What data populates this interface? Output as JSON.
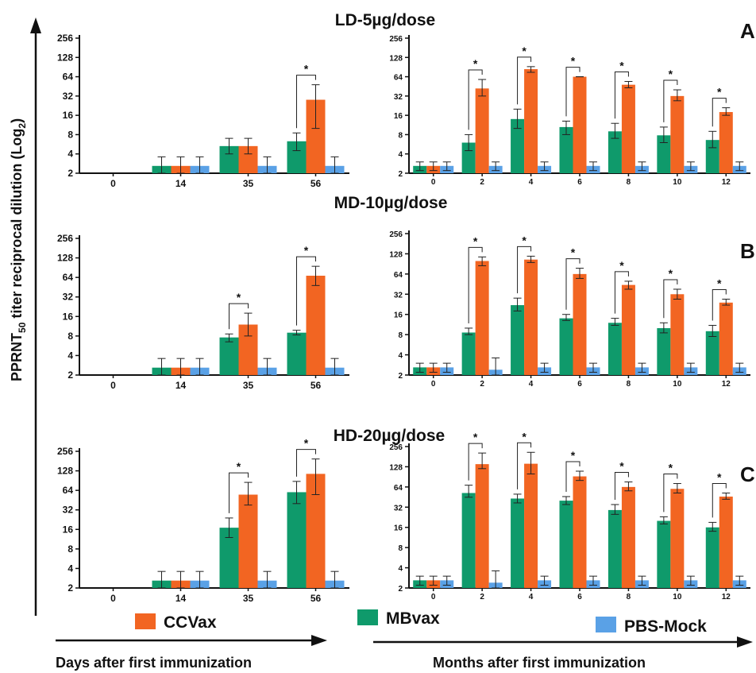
{
  "ylabel": {
    "main": "PPRNT",
    "sub": "50",
    "rest": " titer reciprocal dilution (Log",
    "sub2": "2",
    "end": ")"
  },
  "xlabel_left": "Days after first immunization",
  "xlabel_right": "Months after first immunization",
  "legend": [
    {
      "label": "CCVax",
      "color": "#f26522"
    },
    {
      "label": "MBvax",
      "color": "#0f9a6b"
    },
    {
      "label": "PBS-Mock",
      "color": "#5aa1e6"
    }
  ],
  "colors": {
    "mbvax": "#0f9a6b",
    "ccvax": "#f26522",
    "pbs": "#5aa1e6"
  },
  "star_symbol": "*",
  "chart_data": [
    {
      "type": "bar",
      "title": "LD-5µg/dose",
      "panel": "",
      "scale": "log2",
      "yticks": [
        "2",
        "4",
        "8",
        "16",
        "32",
        "64",
        "128",
        "256"
      ],
      "ylim": [
        2,
        256
      ],
      "categories": [
        "0",
        "14",
        "35",
        "56"
      ],
      "series": [
        {
          "name": "MBvax",
          "values": [
            null,
            2.6,
            5.3,
            6.3
          ],
          "err_low": [
            null,
            2,
            4,
            4.5
          ],
          "err_high": [
            null,
            3.6,
            7,
            8.5
          ]
        },
        {
          "name": "CCVax",
          "values": [
            null,
            2.6,
            5.3,
            28
          ],
          "err_low": [
            null,
            2,
            4,
            10
          ],
          "err_high": [
            null,
            3.6,
            7,
            48
          ]
        },
        {
          "name": "PBS-Mock",
          "values": [
            null,
            2.6,
            2.6,
            2.6
          ],
          "err_low": [
            null,
            2,
            2,
            2
          ],
          "err_high": [
            null,
            3.6,
            3.6,
            3.6
          ]
        }
      ],
      "significance": [
        "56"
      ]
    },
    {
      "type": "bar",
      "title": "",
      "panel": "A",
      "scale": "log2",
      "yticks": [
        "2",
        "4",
        "8",
        "16",
        "32",
        "64",
        "128",
        "256"
      ],
      "ylim": [
        2,
        256
      ],
      "categories": [
        "0",
        "2",
        "4",
        "6",
        "8",
        "10",
        "12"
      ],
      "series": [
        {
          "name": "MBvax",
          "values": [
            2.6,
            6,
            14,
            10.5,
            9,
            7.8,
            6.6
          ],
          "err_low": [
            2.2,
            4.5,
            10,
            8,
            7,
            6,
            5
          ],
          "err_high": [
            3,
            8,
            20,
            13,
            12,
            10.5,
            9
          ]
        },
        {
          "name": "CCVax",
          "values": [
            2.6,
            42,
            84,
            64,
            48,
            32,
            18
          ],
          "err_low": [
            2.2,
            32,
            75,
            64,
            43,
            27,
            16
          ],
          "err_high": [
            3,
            58,
            92,
            64,
            54,
            40,
            21
          ]
        },
        {
          "name": "PBS-Mock",
          "values": [
            2.6,
            2.6,
            2.6,
            2.6,
            2.6,
            2.6,
            2.6
          ],
          "err_low": [
            2.2,
            2.2,
            2.2,
            2.2,
            2.2,
            2.2,
            2.2
          ],
          "err_high": [
            3,
            3,
            3,
            3,
            3,
            3,
            3
          ]
        }
      ],
      "significance": [
        "2",
        "4",
        "6",
        "8",
        "10",
        "12"
      ]
    },
    {
      "type": "bar",
      "title": "MD-10µg/dose",
      "panel": "",
      "scale": "log2",
      "yticks": [
        "2",
        "4",
        "8",
        "16",
        "32",
        "64",
        "128",
        "256"
      ],
      "ylim": [
        2,
        256
      ],
      "categories": [
        "0",
        "14",
        "35",
        "56"
      ],
      "series": [
        {
          "name": "MBvax",
          "values": [
            null,
            2.6,
            7.6,
            9
          ],
          "err_low": [
            null,
            2,
            6.5,
            8.3
          ],
          "err_high": [
            null,
            3.6,
            8.6,
            9.8
          ]
        },
        {
          "name": "CCVax",
          "values": [
            null,
            2.6,
            12,
            68
          ],
          "err_low": [
            null,
            2,
            8,
            48
          ],
          "err_high": [
            null,
            3.6,
            18,
            95
          ]
        },
        {
          "name": "PBS-Mock",
          "values": [
            null,
            2.6,
            2.6,
            2.6
          ],
          "err_low": [
            null,
            2,
            2,
            2
          ],
          "err_high": [
            null,
            3.6,
            3.6,
            3.6
          ]
        }
      ],
      "significance": [
        "35",
        "56"
      ]
    },
    {
      "type": "bar",
      "title": "",
      "panel": "B",
      "scale": "log2",
      "yticks": [
        "2",
        "4",
        "8",
        "16",
        "32",
        "64",
        "128",
        "256"
      ],
      "ylim": [
        2,
        256
      ],
      "categories": [
        "0",
        "2",
        "4",
        "6",
        "8",
        "10",
        "12"
      ],
      "series": [
        {
          "name": "MBvax",
          "values": [
            2.6,
            8.6,
            22,
            14,
            12,
            10,
            9
          ],
          "err_low": [
            2.2,
            8,
            18,
            13,
            11,
            8.5,
            7.5
          ],
          "err_high": [
            3,
            10,
            28,
            16,
            14,
            12,
            11
          ]
        },
        {
          "name": "CCVax",
          "values": [
            2.6,
            100,
            105,
            64,
            44,
            32,
            24
          ],
          "err_low": [
            2.2,
            85,
            95,
            55,
            38,
            27,
            22
          ],
          "err_high": [
            3,
            115,
            118,
            78,
            50,
            38,
            27
          ]
        },
        {
          "name": "PBS-Mock",
          "values": [
            2.6,
            2.4,
            2.6,
            2.6,
            2.6,
            2.6,
            2.6
          ],
          "err_low": [
            2.2,
            2,
            2.2,
            2.2,
            2.2,
            2.2,
            2.2
          ],
          "err_high": [
            3,
            3.6,
            3,
            3,
            3,
            3,
            3
          ]
        }
      ],
      "significance": [
        "2",
        "4",
        "6",
        "8",
        "10",
        "12"
      ]
    },
    {
      "type": "bar",
      "title": "HD-20µg/dose",
      "panel": "",
      "scale": "log2",
      "yticks": [
        "2",
        "4",
        "8",
        "16",
        "32",
        "64",
        "128",
        "256"
      ],
      "ylim": [
        2,
        256
      ],
      "categories": [
        "0",
        "14",
        "35",
        "56"
      ],
      "series": [
        {
          "name": "MBvax",
          "values": [
            null,
            2.6,
            17,
            60
          ],
          "err_low": [
            null,
            2,
            12,
            40
          ],
          "err_high": [
            null,
            3.6,
            24,
            88
          ]
        },
        {
          "name": "CCVax",
          "values": [
            null,
            2.6,
            55,
            115
          ],
          "err_low": [
            null,
            2,
            38,
            55
          ],
          "err_high": [
            null,
            3.6,
            85,
            195
          ]
        },
        {
          "name": "PBS-Mock",
          "values": [
            null,
            2.6,
            2.6,
            2.6
          ],
          "err_low": [
            null,
            2,
            2,
            2
          ],
          "err_high": [
            null,
            3.6,
            3.6,
            3.6
          ]
        }
      ],
      "significance": [
        "35",
        "56"
      ]
    },
    {
      "type": "bar",
      "title": "",
      "panel": "C",
      "scale": "log2",
      "yticks": [
        "2",
        "4",
        "8",
        "16",
        "32",
        "64",
        "128",
        "256"
      ],
      "ylim": [
        2,
        256
      ],
      "categories": [
        "0",
        "2",
        "4",
        "6",
        "8",
        "10",
        "12"
      ],
      "series": [
        {
          "name": "MBvax",
          "values": [
            2.6,
            52,
            43,
            40,
            29,
            20,
            16
          ],
          "err_low": [
            2.2,
            45,
            37,
            35,
            25,
            18,
            14
          ],
          "err_high": [
            3,
            68,
            50,
            46,
            35,
            23,
            19
          ]
        },
        {
          "name": "CCVax",
          "values": [
            2.6,
            140,
            142,
            92,
            64,
            60,
            46
          ],
          "err_low": [
            2.2,
            120,
            100,
            80,
            56,
            52,
            42
          ],
          "err_high": [
            3,
            205,
            210,
            110,
            76,
            72,
            52
          ]
        },
        {
          "name": "PBS-Mock",
          "values": [
            2.6,
            2.4,
            2.6,
            2.6,
            2.6,
            2.6,
            2.6
          ],
          "err_low": [
            2.2,
            2,
            2.2,
            2.2,
            2.2,
            2.2,
            2.2
          ],
          "err_high": [
            3,
            3.6,
            3,
            3,
            3,
            3,
            3
          ]
        }
      ],
      "significance": [
        "2",
        "4",
        "6",
        "8",
        "10",
        "12"
      ]
    }
  ]
}
